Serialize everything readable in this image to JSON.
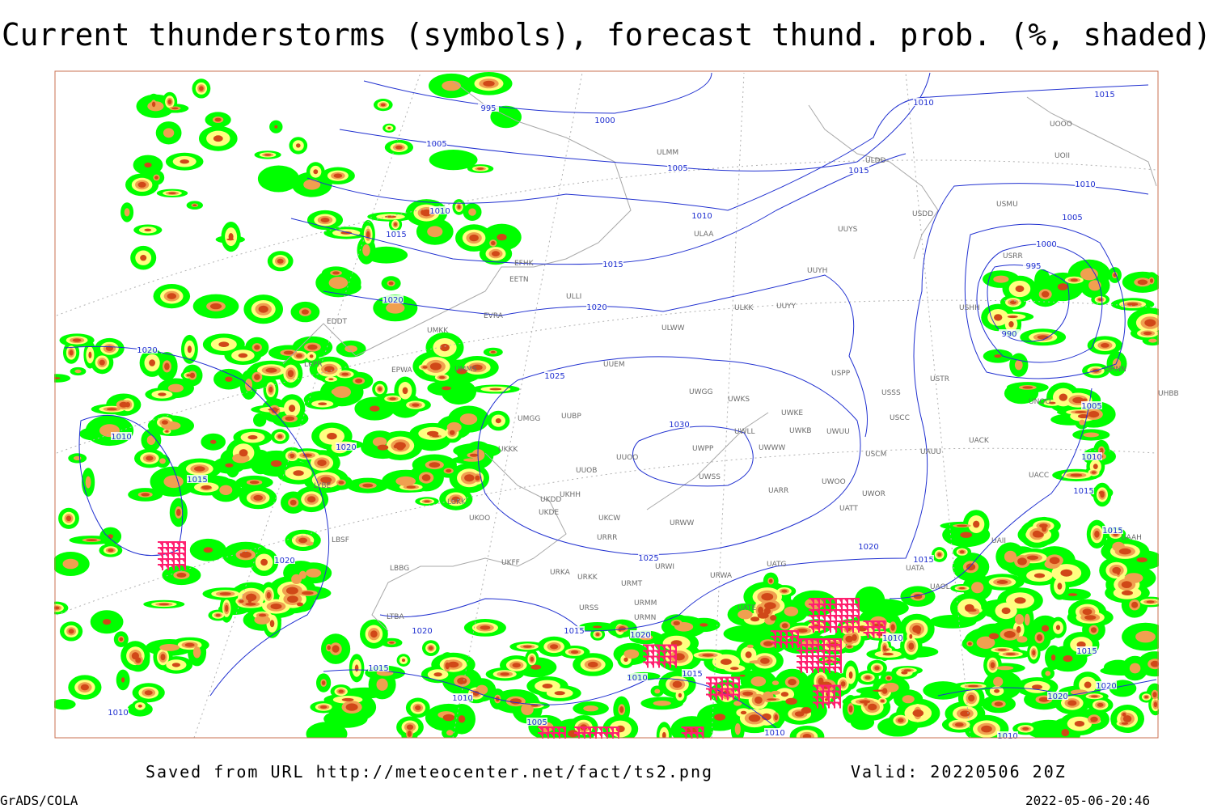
{
  "header": {
    "title": "Current thunderstorms (symbols), forecast thund. prob. (%, shaded)"
  },
  "footer": {
    "source": "Saved from URL http://meteocenter.net/fact/ts2.png",
    "valid": "Valid: 20220506 20Z",
    "software": "GrADS/COLA",
    "timestamp": "2022-05-06-20:46"
  },
  "stations": [
    "ULMM",
    "ULDD",
    "USDD",
    "USMU",
    "ULAA",
    "UUYS",
    "UUYH",
    "EFHK",
    "EETN",
    "ULLI",
    "EVRA",
    "ULWW",
    "ULKK",
    "UUYY",
    "EDDT",
    "UMKK",
    "UUEM",
    "UMMS",
    "EPWA",
    "LKPR",
    "UMGG",
    "UUBP",
    "UWGG",
    "UWKS",
    "UWKE",
    "UWKB",
    "UWUU",
    "UWLL",
    "USSS",
    "USTR",
    "USPP",
    "USCC",
    "UACK",
    "UKKK",
    "UUOO",
    "UWPP",
    "UWWW",
    "USCM",
    "UAUU",
    "UUOB",
    "UWSS",
    "LYBE",
    "UKHH",
    "UKDD",
    "UKDE",
    "LUKK",
    "UKOO",
    "UKCW",
    "UARR",
    "UWOO",
    "UWOR",
    "UATT",
    "URWW",
    "URRR",
    "LBSF",
    "UAII",
    "UAAH",
    "UKFF",
    "URWI",
    "LBBG",
    "URKA",
    "URKK",
    "URWA",
    "UATG",
    "UATA",
    "UAOL",
    "URMT",
    "URMM",
    "URSS",
    "UATE",
    "URMN",
    "LTBA",
    "USHH",
    "UHNN",
    "UHBB",
    "UNOO",
    "UACC",
    "USRR",
    "UOOO",
    "UOII"
  ],
  "isobar_labels": [
    995,
    1000,
    1005,
    1005,
    1010,
    1015,
    1015,
    1010,
    1015,
    1010,
    1015,
    1020,
    1020,
    1020,
    1025,
    1030,
    1010,
    1020,
    1015,
    1020,
    1025,
    1020,
    1015,
    1010,
    1005,
    1000,
    995,
    990,
    1005,
    1010,
    1015,
    1015,
    1020,
    1015,
    1020,
    1015,
    1015,
    1010,
    1010,
    1005,
    1010,
    1010,
    1010,
    1010,
    1015,
    1020,
    1020
  ]
}
